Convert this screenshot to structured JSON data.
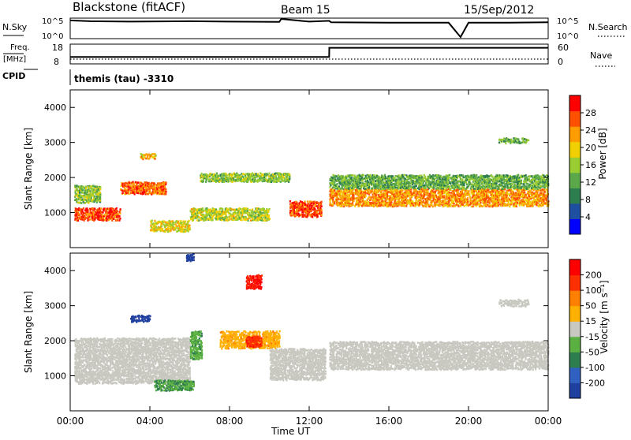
{
  "header": {
    "station": "Blackstone (fitACF)",
    "beam": "Beam 15",
    "date": "15/Sep/2012"
  },
  "top_strips": {
    "nsky_label": "N.Sky",
    "nsky_ticks": [
      "10^5",
      "10^0"
    ],
    "nsearch_label": "N.Search",
    "nsearch_ticks": [
      "10^5",
      "10^0"
    ],
    "freq_label_line1": "Freq.",
    "freq_label_line2": "[MHz]",
    "freq_ticks": [
      "18",
      "8"
    ],
    "nave_label": "Nave",
    "nave_ticks": [
      "60",
      "0"
    ],
    "cpid_label": "CPID",
    "cpid_text": "themis (tau) -3310"
  },
  "power_panel": {
    "ylabel": "Slant Range [km]",
    "yticks": [
      "4000",
      "3000",
      "2000",
      "1000"
    ],
    "colorbar_label": "Power [dB]",
    "colorbar_ticks": [
      "28",
      "24",
      "20",
      "16",
      "12",
      "8",
      "4"
    ],
    "colors": [
      "#0000ff",
      "#1f4fa0",
      "#2e7d4f",
      "#5aa84a",
      "#9acd32",
      "#f0d000",
      "#ff9c00",
      "#ff5000",
      "#ff0000"
    ]
  },
  "velocity_panel": {
    "ylabel": "Slant Range [km]",
    "yticks": [
      "4000",
      "3000",
      "2000",
      "1000"
    ],
    "colorbar_label": "Velocity [m s⁻¹]",
    "colorbar_ticks": [
      "200",
      "100",
      "50",
      "15",
      "-15",
      "-50",
      "-100",
      "-200"
    ],
    "colors": [
      "#2040a0",
      "#3060c0",
      "#2e7d4f",
      "#5ab040",
      "#c8c8c0",
      "#ffb000",
      "#ff8000",
      "#ff3000",
      "#ff0000"
    ]
  },
  "xaxis": {
    "label": "Time UT",
    "ticks": [
      "00:00",
      "04:00",
      "08:00",
      "12:00",
      "16:00",
      "20:00",
      "00:00"
    ]
  },
  "chart_data": [
    {
      "type": "line",
      "name": "N.Sky / N.Search",
      "x_range_hours": [
        0,
        24
      ],
      "x": [
        0,
        1,
        3,
        6,
        8,
        10.5,
        10.6,
        12,
        13,
        13.1,
        16,
        19,
        19.6,
        20,
        22,
        24
      ],
      "values_log": [
        4.6,
        4.4,
        4.3,
        4.4,
        4.3,
        4.2,
        5.0,
        4.3,
        4.5,
        4.1,
        4.0,
        4.0,
        0.2,
        4.0,
        4.0,
        4.1
      ],
      "ylim": [
        0,
        5
      ]
    },
    {
      "type": "line",
      "name": "Freq. / Nave",
      "x_range_hours": [
        0,
        24
      ],
      "freq_x": [
        0,
        13,
        13.01,
        19.6,
        19.7,
        24
      ],
      "freq_mhz": [
        11.5,
        11.5,
        16.8,
        16.8,
        16.8,
        16.8
      ],
      "ylim": [
        8,
        18
      ]
    },
    {
      "type": "heatmap",
      "name": "Power",
      "x_range_hours": [
        0,
        24
      ],
      "ylim": [
        0,
        4500
      ],
      "clim": [
        0,
        30
      ],
      "bands": [
        {
          "x": [
            0.2,
            2.5
          ],
          "y": [
            800,
            1150
          ],
          "v": 26
        },
        {
          "x": [
            0.2,
            1.5
          ],
          "y": [
            1300,
            1800
          ],
          "v": 14
        },
        {
          "x": [
            2.5,
            4.8
          ],
          "y": [
            1550,
            1900
          ],
          "v": 24
        },
        {
          "x": [
            3.5,
            4.3
          ],
          "y": [
            2550,
            2700
          ],
          "v": 20
        },
        {
          "x": [
            4.0,
            6.0
          ],
          "y": [
            480,
            800
          ],
          "v": 18
        },
        {
          "x": [
            6.0,
            10.0
          ],
          "y": [
            800,
            1150
          ],
          "v": 16
        },
        {
          "x": [
            6.5,
            11.0
          ],
          "y": [
            1900,
            2150
          ],
          "v": 14
        },
        {
          "x": [
            11.0,
            12.6
          ],
          "y": [
            900,
            1350
          ],
          "v": 26
        },
        {
          "x": [
            13.0,
            24.0
          ],
          "y": [
            1200,
            1700
          ],
          "v": 22
        },
        {
          "x": [
            13.0,
            24.0
          ],
          "y": [
            1700,
            2100
          ],
          "v": 12
        },
        {
          "x": [
            21.5,
            23.0
          ],
          "y": [
            3000,
            3150
          ],
          "v": 12
        }
      ]
    },
    {
      "type": "heatmap",
      "name": "Velocity",
      "x_range_hours": [
        0,
        24
      ],
      "ylim": [
        0,
        4500
      ],
      "clim": [
        -250,
        250
      ],
      "bands": [
        {
          "x": [
            0.2,
            6.0
          ],
          "y": [
            800,
            2100
          ],
          "v": 0
        },
        {
          "x": [
            3.0,
            4.0
          ],
          "y": [
            2550,
            2750
          ],
          "v": -230
        },
        {
          "x": [
            4.2,
            6.2
          ],
          "y": [
            600,
            900
          ],
          "v": -80
        },
        {
          "x": [
            6.0,
            6.6
          ],
          "y": [
            1500,
            2300
          ],
          "v": -70
        },
        {
          "x": [
            7.5,
            10.5
          ],
          "y": [
            1800,
            2300
          ],
          "v": 70
        },
        {
          "x": [
            8.8,
            9.6
          ],
          "y": [
            1850,
            2150
          ],
          "v": 180
        },
        {
          "x": [
            8.8,
            9.6
          ],
          "y": [
            3500,
            3900
          ],
          "v": 200
        },
        {
          "x": [
            5.8,
            6.2
          ],
          "y": [
            4300,
            4500
          ],
          "v": -220
        },
        {
          "x": [
            10.0,
            12.8
          ],
          "y": [
            900,
            1800
          ],
          "v": 0
        },
        {
          "x": [
            13.0,
            24.0
          ],
          "y": [
            1200,
            2000
          ],
          "v": 0
        },
        {
          "x": [
            21.5,
            23.0
          ],
          "y": [
            3000,
            3200
          ],
          "v": 0
        }
      ]
    }
  ]
}
